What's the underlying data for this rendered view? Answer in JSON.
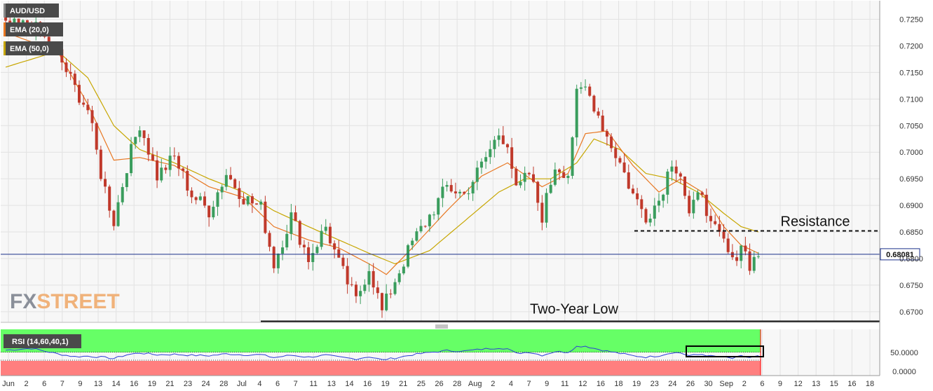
{
  "chart_data": [
    {
      "type": "candlestick",
      "symbol": "AUD/USD",
      "legend": [
        {
          "label": "AUD/USD",
          "color": "#606060"
        },
        {
          "label": "EMA (20,0)",
          "color": "#e87722"
        },
        {
          "label": "EMA (50,0)",
          "color": "#c7a600"
        }
      ],
      "x_tick_labels": [
        "Jun",
        "2",
        "6",
        "7",
        "9",
        "13",
        "14",
        "16",
        "19",
        "21",
        "23",
        "24",
        "28",
        "Jul",
        "4",
        "6",
        "7",
        "11",
        "13",
        "14",
        "16",
        "19",
        "21",
        "25",
        "26",
        "28",
        "Aug",
        "2",
        "4",
        "7",
        "9",
        "11",
        "12",
        "16",
        "18",
        "19",
        "23",
        "24",
        "26",
        "30",
        "Sep",
        "2",
        "6",
        "9",
        "12",
        "13",
        "15",
        "16",
        "18"
      ],
      "y_ticks": [
        "0.7250",
        "0.7200",
        "0.7150",
        "0.7100",
        "0.7050",
        "0.7000",
        "0.6950",
        "0.6900",
        "0.6850",
        "0.6800",
        "0.6750",
        "0.6700"
      ],
      "ylim": [
        0.668,
        0.7285
      ],
      "grid": true,
      "last_price": "0.68081",
      "last_price_value": 0.6808,
      "annotations": [
        {
          "text": "Resistance",
          "level": 0.6852,
          "style": "dashed"
        },
        {
          "text": "Two-Year Low",
          "level": 0.6682,
          "style": "solid"
        }
      ],
      "close_anchors": [
        [
          0,
          0.7235
        ],
        [
          6,
          0.724
        ],
        [
          12,
          0.7185
        ],
        [
          16,
          0.712
        ],
        [
          19,
          0.708
        ],
        [
          22,
          0.696
        ],
        [
          25,
          0.687
        ],
        [
          28,
          0.6975
        ],
        [
          31,
          0.7055
        ],
        [
          35,
          0.6955
        ],
        [
          39,
          0.699
        ],
        [
          43,
          0.692
        ],
        [
          47,
          0.689
        ],
        [
          51,
          0.696
        ],
        [
          55,
          0.6915
        ],
        [
          59,
          0.6895
        ],
        [
          62,
          0.679
        ],
        [
          66,
          0.688
        ],
        [
          70,
          0.68
        ],
        [
          74,
          0.686
        ],
        [
          77,
          0.679
        ],
        [
          81,
          0.672
        ],
        [
          84,
          0.6785
        ],
        [
          87,
          0.67
        ],
        [
          90,
          0.676
        ],
        [
          94,
          0.683
        ],
        [
          98,
          0.688
        ],
        [
          102,
          0.6935
        ],
        [
          106,
          0.692
        ],
        [
          110,
          0.6975
        ],
        [
          114,
          0.7035
        ],
        [
          116,
          0.702
        ],
        [
          118,
          0.6925
        ],
        [
          121,
          0.696
        ],
        [
          124,
          0.688
        ],
        [
          127,
          0.6975
        ],
        [
          130,
          0.696
        ],
        [
          132,
          0.7105
        ],
        [
          134,
          0.712
        ],
        [
          136,
          0.709
        ],
        [
          139,
          0.703
        ],
        [
          142,
          0.698
        ],
        [
          145,
          0.692
        ],
        [
          148,
          0.688
        ],
        [
          151,
          0.691
        ],
        [
          154,
          0.6985
        ],
        [
          156,
          0.696
        ],
        [
          158,
          0.688
        ],
        [
          161,
          0.693
        ],
        [
          163,
          0.686
        ],
        [
          166,
          0.683
        ],
        [
          168,
          0.679
        ],
        [
          170,
          0.683
        ],
        [
          172,
          0.679
        ],
        [
          174,
          0.6808
        ]
      ],
      "ema20_anchors": [
        [
          0,
          0.7225
        ],
        [
          12,
          0.719
        ],
        [
          19,
          0.709
        ],
        [
          25,
          0.6985
        ],
        [
          31,
          0.699
        ],
        [
          39,
          0.6975
        ],
        [
          47,
          0.6935
        ],
        [
          55,
          0.6915
        ],
        [
          62,
          0.686
        ],
        [
          70,
          0.6835
        ],
        [
          77,
          0.682
        ],
        [
          84,
          0.679
        ],
        [
          88,
          0.677
        ],
        [
          94,
          0.682
        ],
        [
          102,
          0.689
        ],
        [
          110,
          0.6955
        ],
        [
          116,
          0.698
        ],
        [
          124,
          0.6935
        ],
        [
          130,
          0.696
        ],
        [
          134,
          0.7035
        ],
        [
          139,
          0.704
        ],
        [
          145,
          0.6975
        ],
        [
          151,
          0.6925
        ],
        [
          156,
          0.695
        ],
        [
          161,
          0.6925
        ],
        [
          166,
          0.686
        ],
        [
          170,
          0.6825
        ],
        [
          174,
          0.681
        ]
      ],
      "ema50_anchors": [
        [
          0,
          0.716
        ],
        [
          12,
          0.719
        ],
        [
          19,
          0.714
        ],
        [
          25,
          0.705
        ],
        [
          31,
          0.7005
        ],
        [
          39,
          0.698
        ],
        [
          47,
          0.695
        ],
        [
          55,
          0.6925
        ],
        [
          62,
          0.689
        ],
        [
          70,
          0.686
        ],
        [
          77,
          0.6835
        ],
        [
          84,
          0.681
        ],
        [
          90,
          0.679
        ],
        [
          98,
          0.6815
        ],
        [
          106,
          0.687
        ],
        [
          114,
          0.6925
        ],
        [
          120,
          0.695
        ],
        [
          126,
          0.695
        ],
        [
          132,
          0.698
        ],
        [
          136,
          0.7025
        ],
        [
          142,
          0.7005
        ],
        [
          148,
          0.696
        ],
        [
          154,
          0.695
        ],
        [
          160,
          0.6925
        ],
        [
          166,
          0.6885
        ],
        [
          170,
          0.686
        ],
        [
          174,
          0.685
        ]
      ]
    },
    {
      "type": "line",
      "indicator": "RSI (14,60,40,1)",
      "y_ticks": [
        "50.0000",
        "0.0000"
      ],
      "ylim": [
        0,
        100
      ],
      "overbought_level": 60,
      "oversold_level": 40,
      "overbought_color": "#66ff66",
      "oversold_color": "#ff7f7f",
      "rsi_anchors": [
        [
          0,
          58
        ],
        [
          6,
          62
        ],
        [
          12,
          50
        ],
        [
          16,
          44
        ],
        [
          19,
          45
        ],
        [
          22,
          43
        ],
        [
          25,
          40
        ],
        [
          28,
          48
        ],
        [
          31,
          52
        ],
        [
          35,
          48
        ],
        [
          39,
          49
        ],
        [
          43,
          47
        ],
        [
          47,
          46
        ],
        [
          51,
          50
        ],
        [
          55,
          48
        ],
        [
          59,
          48
        ],
        [
          62,
          42
        ],
        [
          66,
          47
        ],
        [
          70,
          43
        ],
        [
          74,
          47
        ],
        [
          77,
          43
        ],
        [
          81,
          39
        ],
        [
          84,
          44
        ],
        [
          87,
          37
        ],
        [
          90,
          41
        ],
        [
          94,
          48
        ],
        [
          98,
          53
        ],
        [
          102,
          57
        ],
        [
          106,
          56
        ],
        [
          110,
          60
        ],
        [
          114,
          63
        ],
        [
          116,
          61
        ],
        [
          118,
          51
        ],
        [
          121,
          54
        ],
        [
          124,
          47
        ],
        [
          127,
          55
        ],
        [
          130,
          54
        ],
        [
          132,
          66
        ],
        [
          134,
          67
        ],
        [
          136,
          62
        ],
        [
          139,
          56
        ],
        [
          142,
          51
        ],
        [
          145,
          46
        ],
        [
          148,
          43
        ],
        [
          151,
          46
        ],
        [
          154,
          53
        ],
        [
          156,
          52
        ],
        [
          158,
          46
        ],
        [
          161,
          49
        ],
        [
          163,
          45
        ],
        [
          166,
          43
        ],
        [
          168,
          40
        ],
        [
          170,
          45
        ],
        [
          172,
          42
        ],
        [
          174,
          45
        ]
      ]
    }
  ],
  "brand": "FXSTREET"
}
